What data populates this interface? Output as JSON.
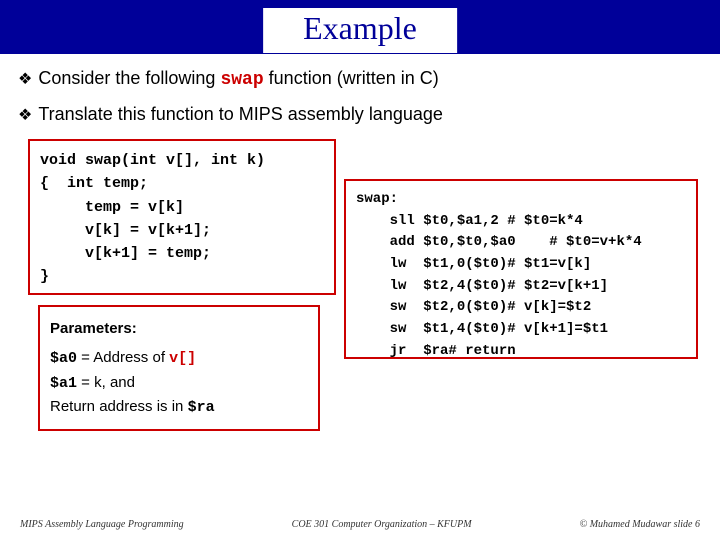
{
  "title": "Example",
  "bullets": {
    "line1_pre": "Consider the following ",
    "line1_kw": "swap",
    "line1_post": " function (written in C)",
    "line2": "Translate this function to MIPS assembly language"
  },
  "c_code": "void swap(int v[], int k)\n{  int temp;\n     temp = v[k]\n     v[k] = v[k+1];\n     v[k+1] = temp;\n}",
  "mips_code": "swap:\n    sll $t0,$a1,2 # $t0=k*4\n    add $t0,$t0,$a0    # $t0=v+k*4\n    lw  $t1,0($t0)# $t1=v[k]\n    lw  $t2,4($t0)# $t2=v[k+1]\n    sw  $t2,0($t0)# v[k]=$t2\n    sw  $t1,4($t0)# v[k+1]=$t1\n    jr  $ra# return",
  "params": {
    "heading": "Parameters:",
    "l1_a": "$a0",
    "l1_b": " = Address of ",
    "l1_c": "v[]",
    "l2_a": "$a1",
    "l2_b": " = k",
    "l2_c": ", and",
    "l3_a": "Return address is in ",
    "l3_b": "$ra"
  },
  "footer": {
    "left": "MIPS Assembly Language Programming",
    "center": "COE 301 Computer Organization – KFUPM",
    "right": "© Muhamed Mudawar   slide 6"
  },
  "colors": {
    "title_bg": "#000099",
    "accent": "#cc0000"
  }
}
